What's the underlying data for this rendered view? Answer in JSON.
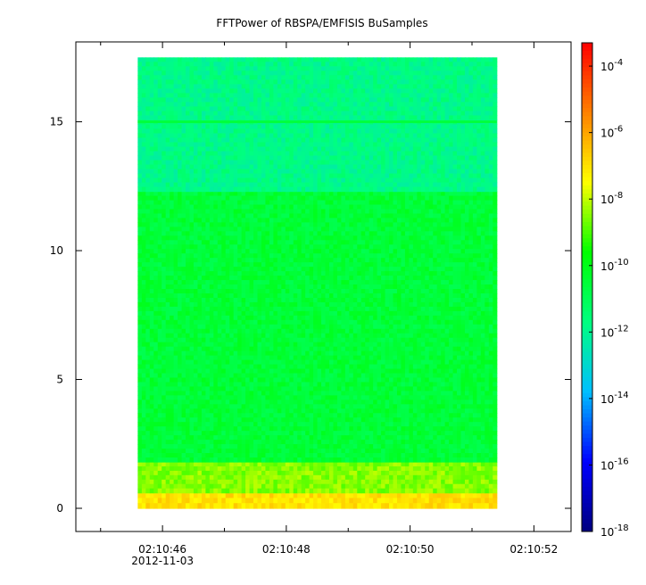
{
  "chart_data": {
    "type": "heatmap",
    "title": "FFTPower of RBSPA/EMFISIS  BuSamples",
    "xlabel": "",
    "ylabel": "",
    "x_ticks": [
      "02:10:46",
      "02:10:48",
      "02:10:50",
      "02:10:52"
    ],
    "x_tick_sub": [
      "2012-11-03",
      "",
      "",
      ""
    ],
    "xlim_seconds": [
      44.6,
      52.6
    ],
    "data_x_range_seconds": [
      45.6,
      51.4
    ],
    "ylim": [
      -0.9,
      18.1
    ],
    "data_y_range": [
      0,
      17.5
    ],
    "y_ticks": [
      0,
      5,
      10,
      15
    ],
    "colorbar": {
      "scale": "log",
      "range_exponent": [
        -18,
        -3.3
      ],
      "tick_exponents": [
        -4,
        -6,
        -8,
        -10,
        -12,
        -14,
        -16,
        -18
      ],
      "tick_labels": [
        "10-4",
        "10-6",
        "10-8",
        "10-10",
        "10-12",
        "10-14",
        "10-16",
        "10-18"
      ],
      "colors": [
        "#00007f",
        "#0000ff",
        "#00bfff",
        "#00ff80",
        "#00ff00",
        "#ffff00",
        "#ff8000",
        "#ff0000"
      ]
    },
    "bands": [
      {
        "y_from": 0.0,
        "y_to": 0.6,
        "log_power": -7.0
      },
      {
        "y_from": 0.6,
        "y_to": 1.8,
        "log_power": -8.5
      },
      {
        "y_from": 1.8,
        "y_to": 12.3,
        "log_power": -10.5
      },
      {
        "y_from": 12.3,
        "y_to": 17.5,
        "log_power": -11.8
      }
    ],
    "lines": [
      {
        "y": 15.0,
        "log_power": -10.6
      }
    ],
    "grid": false
  }
}
